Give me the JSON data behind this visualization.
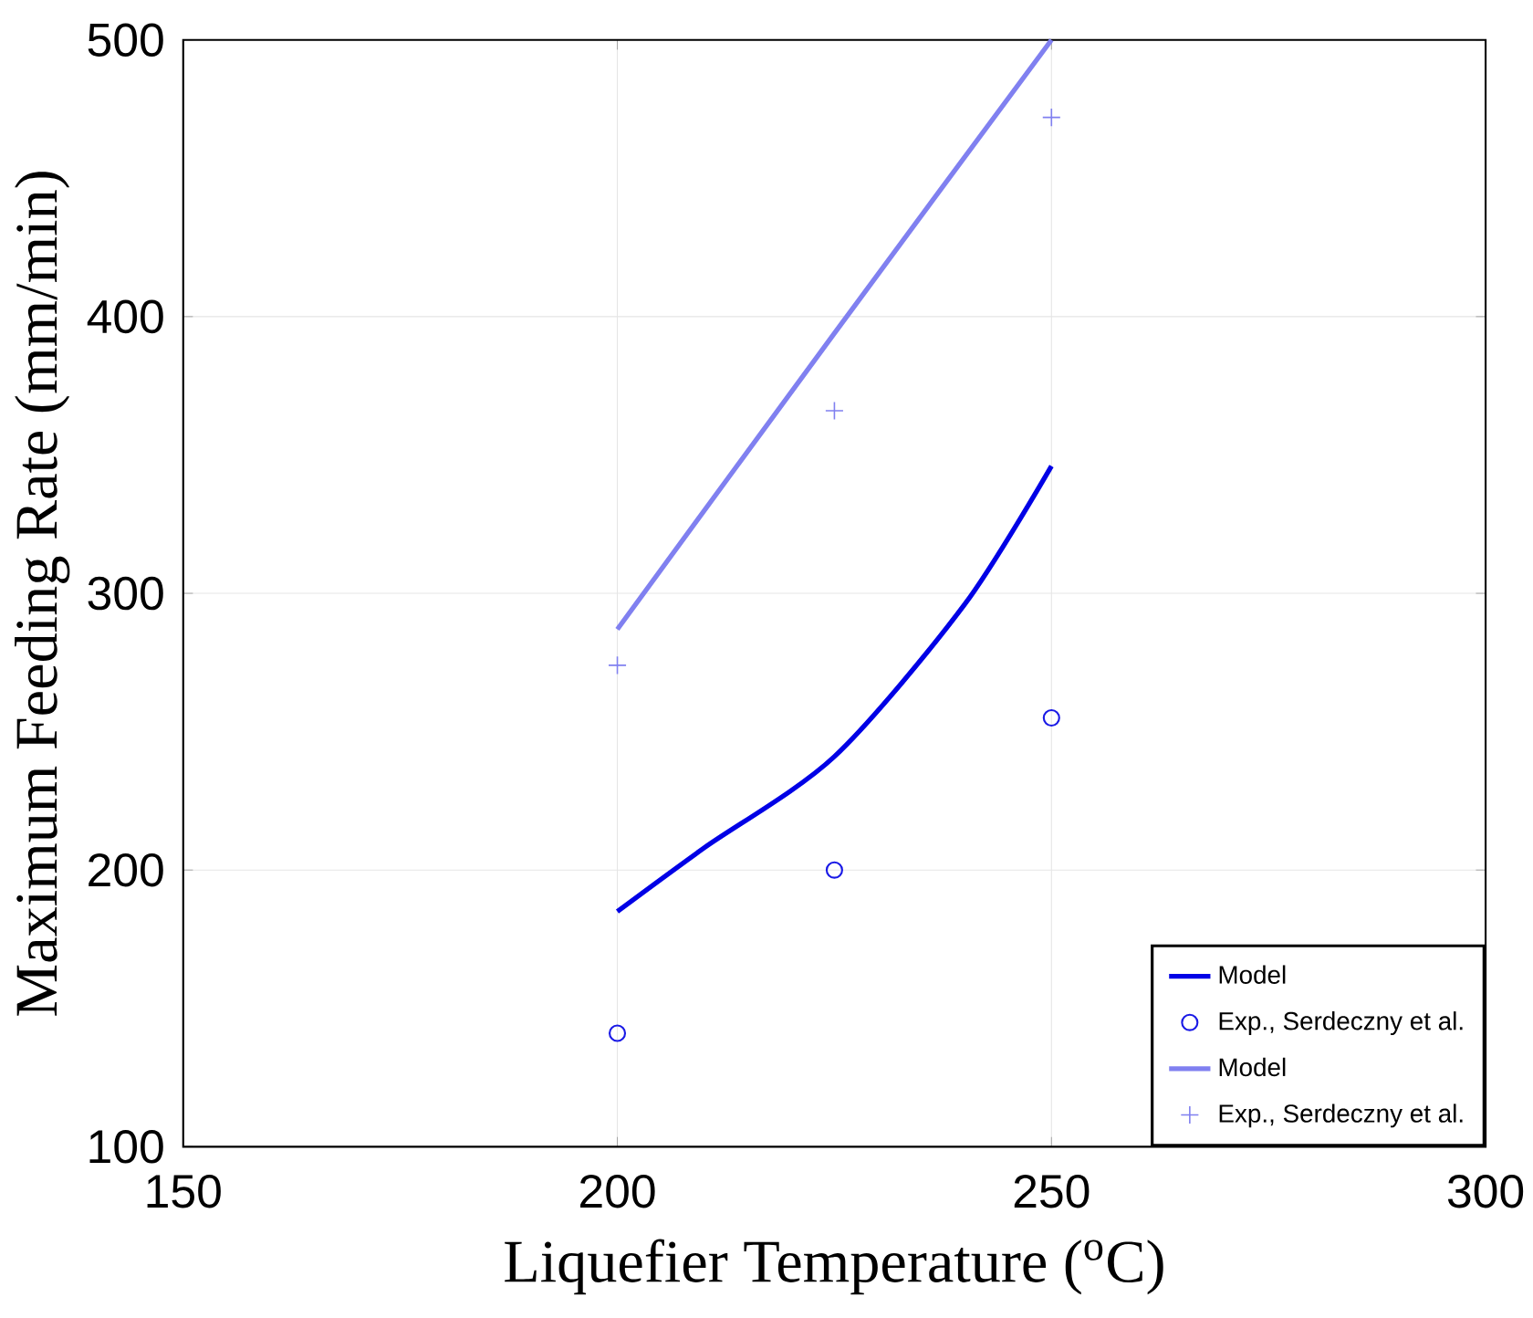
{
  "chart_data": {
    "type": "line",
    "xlabel": "Liquefier Temperature ($^{o}$C)",
    "ylabel": "Maximum Feeding Rate (mm/min)",
    "xlim": [
      150,
      300
    ],
    "ylim": [
      100,
      500
    ],
    "xticks": [
      150,
      200,
      250,
      300
    ],
    "yticks": [
      100,
      200,
      300,
      400,
      500
    ],
    "grid": true,
    "legend": "bottom right",
    "series": [
      {
        "name": "Model",
        "color": "#0000e6",
        "marker": "none",
        "x": [
          200,
          210,
          225,
          240,
          250
        ],
        "values": [
          185,
          208,
          241,
          296,
          346
        ]
      },
      {
        "name": "Exp., Serdeczny et al.",
        "type": "scatter",
        "color": "#1a1ae6",
        "marker": "circle",
        "x": [
          200,
          225,
          250
        ],
        "values": [
          141,
          200,
          255
        ]
      },
      {
        "name": "Model",
        "color": "#8080f0",
        "marker": "none",
        "x": [
          200,
          225,
          250
        ],
        "values": [
          287,
          394,
          500
        ]
      },
      {
        "name": "Exp., Serdeczny et al.",
        "type": "scatter",
        "color": "#8080f0",
        "marker": "cross",
        "x": [
          200,
          225,
          250
        ],
        "values": [
          274,
          366,
          472
        ]
      }
    ]
  }
}
